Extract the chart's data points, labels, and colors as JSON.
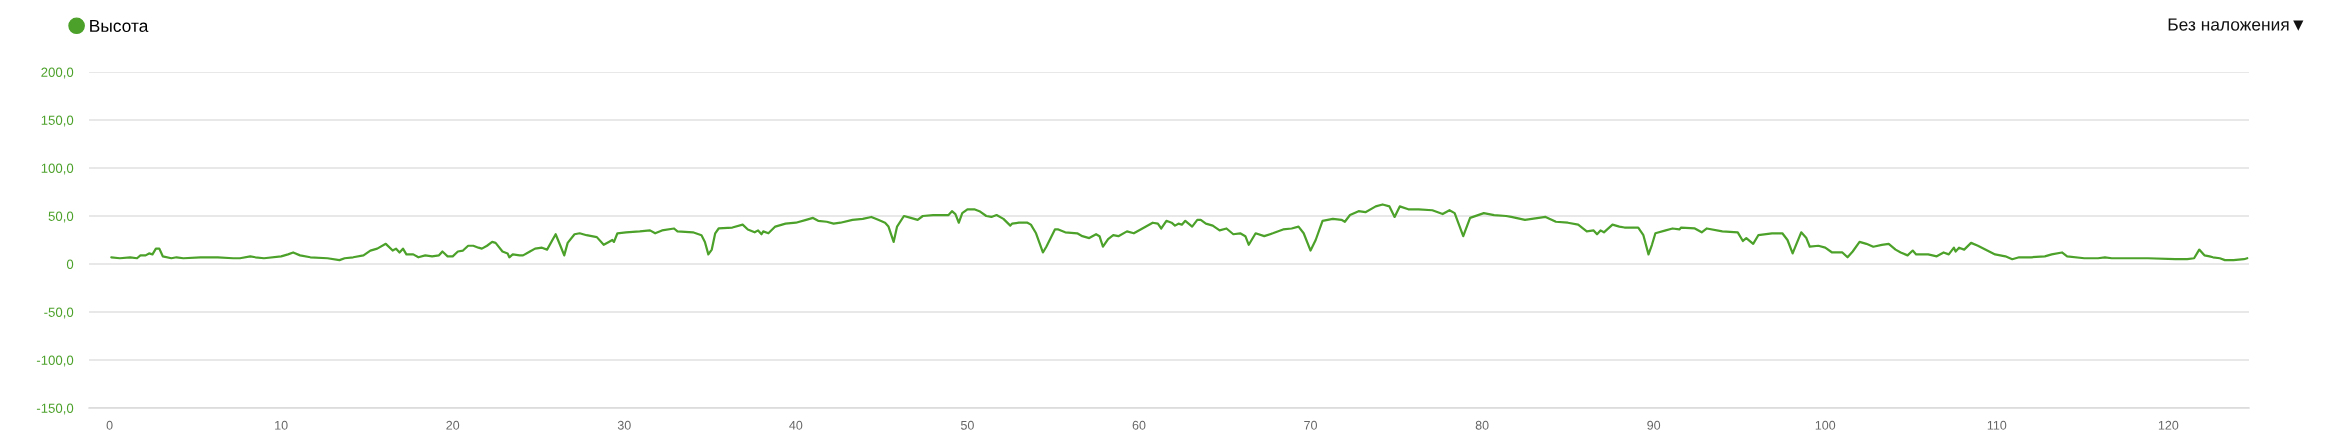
{
  "chart_data": {
    "type": "line",
    "x": [
      0.1,
      0.6,
      1.2,
      1.6,
      1.8,
      2.1,
      2.3,
      2.5,
      2.7,
      2.9,
      3.1,
      3.6,
      3.9,
      4.3,
      5.3,
      6.3,
      7.2,
      7.6,
      8.2,
      8.5,
      9.0,
      10.0,
      10.4,
      10.7,
      11.1,
      11.7,
      12.7,
      13.4,
      13.7,
      14.2,
      14.8,
      15.2,
      15.6,
      16.1,
      16.5,
      16.7,
      16.9,
      17.1,
      17.3,
      17.7,
      18.0,
      18.4,
      18.8,
      19.2,
      19.4,
      19.7,
      20.0,
      20.3,
      20.6,
      20.9,
      21.2,
      21.5,
      21.7,
      22.0,
      22.3,
      22.5,
      22.9,
      23.2,
      23.3,
      23.5,
      23.9,
      24.1,
      24.5,
      24.8,
      25.2,
      25.5,
      26.0,
      26.3,
      26.5,
      26.7,
      27.1,
      27.4,
      27.8,
      28.4,
      28.8,
      29.1,
      29.3,
      29.4,
      29.6,
      30.1,
      30.9,
      31.5,
      31.8,
      32.2,
      32.9,
      33.1,
      34.0,
      34.5,
      34.7,
      34.9,
      35.1,
      35.3,
      35.5,
      36.3,
      36.9,
      37.2,
      37.6,
      37.8,
      38.0,
      38.1,
      38.4,
      38.8,
      39.4,
      40.0,
      40.6,
      41.0,
      41.3,
      41.8,
      42.2,
      42.6,
      43.3,
      43.9,
      44.4,
      44.8,
      45.2,
      45.4,
      45.7,
      45.9,
      46.3,
      46.7,
      47.1,
      47.4,
      48.0,
      48.6,
      48.9,
      49.1,
      49.3,
      49.5,
      49.7,
      50.0,
      50.4,
      50.7,
      51.1,
      51.4,
      51.7,
      52.1,
      52.5,
      52.6,
      53.0,
      53.5,
      53.7,
      54.0,
      54.4,
      54.6,
      55.1,
      55.3,
      55.7,
      56.4,
      56.7,
      57.1,
      57.5,
      57.7,
      57.9,
      58.2,
      58.5,
      58.8,
      59.3,
      59.7,
      60.2,
      60.8,
      61.1,
      61.3,
      61.6,
      61.9,
      62.1,
      62.3,
      62.5,
      62.7,
      63.1,
      63.4,
      63.6,
      63.9,
      64.3,
      64.7,
      65.1,
      65.5,
      65.9,
      66.2,
      66.4,
      66.8,
      67.3,
      67.8,
      68.4,
      68.9,
      69.3,
      69.6,
      70.0,
      70.3,
      70.7,
      71.3,
      71.8,
      72.0,
      72.3,
      72.8,
      73.2,
      73.8,
      74.2,
      74.6,
      74.9,
      75.2,
      75.7,
      76.3,
      77.1,
      77.7,
      78.1,
      78.4,
      78.9,
      79.3,
      80.1,
      80.7,
      81.4,
      81.7,
      82.5,
      82.9,
      83.7,
      84.3,
      85.0,
      85.6,
      86.1,
      86.5,
      86.7,
      86.9,
      87.1,
      87.6,
      88.0,
      88.3,
      89.1,
      89.4,
      89.7,
      89.9,
      90.1,
      90.7,
      91.1,
      91.5,
      91.6,
      92.4,
      92.8,
      93.1,
      94.0,
      94.9,
      95.2,
      95.4,
      95.8,
      96.1,
      96.9,
      97.5,
      97.8,
      98.1,
      98.3,
      98.6,
      98.9,
      99.1,
      99.6,
      100.0,
      100.4,
      101.0,
      101.3,
      101.6,
      102.0,
      102.4,
      102.8,
      103.3,
      103.7,
      104.1,
      104.4,
      104.8,
      105.1,
      105.3,
      106.0,
      106.5,
      106.9,
      107.2,
      107.5,
      107.6,
      107.8,
      108.1,
      108.5,
      108.9,
      109.9,
      110.5,
      110.9,
      111.3,
      112.0,
      112.8,
      113.2,
      113.8,
      114.1,
      115.1,
      115.9,
      116.3,
      116.7,
      117.8,
      118.8,
      120.4,
      121.1,
      121.5,
      121.8,
      122.1,
      122.4,
      122.6,
      123.0,
      123.3,
      123.8,
      124.4,
      124.6
    ],
    "series": [
      {
        "name": "Высота",
        "color": "#4ca12a",
        "values": [
          7,
          6,
          7,
          6,
          9,
          9,
          11,
          10,
          16,
          16,
          8,
          6,
          7,
          6,
          7,
          7,
          6,
          6,
          8,
          7,
          6,
          8,
          10,
          12,
          9,
          7,
          6,
          4,
          6,
          7,
          9,
          14,
          16,
          21,
          14,
          16,
          12,
          16,
          10,
          10,
          7,
          9,
          8,
          9,
          13,
          8,
          8,
          13,
          14,
          19,
          19,
          17,
          16,
          19,
          23,
          22,
          13,
          11,
          7,
          10,
          9,
          9,
          13,
          16,
          17,
          15,
          31,
          18,
          9,
          22,
          31,
          32,
          30,
          28,
          20,
          23,
          25,
          23,
          32,
          33,
          34,
          35,
          32,
          35,
          37,
          34,
          33,
          30,
          23,
          10,
          15,
          32,
          37,
          38,
          41,
          36,
          33,
          35,
          31,
          34,
          32,
          39,
          42,
          43,
          46,
          48,
          45,
          44,
          42,
          43,
          46,
          47,
          49,
          46,
          43,
          39,
          23,
          39,
          50,
          48,
          46,
          50,
          51,
          51,
          51,
          55,
          52,
          43,
          53,
          57,
          57,
          55,
          50,
          49,
          51,
          47,
          40,
          42,
          43,
          43,
          41,
          32,
          12,
          18,
          36,
          36,
          33,
          32,
          29,
          27,
          31,
          29,
          18,
          26,
          30,
          29,
          34,
          32,
          37,
          43,
          42,
          37,
          45,
          43,
          40,
          42,
          41,
          45,
          39,
          46,
          46,
          42,
          40,
          35,
          37,
          31,
          32,
          29,
          20,
          32,
          29,
          32,
          36,
          37,
          39,
          32,
          14,
          25,
          45,
          47,
          46,
          44,
          51,
          55,
          54,
          60,
          62,
          60,
          49,
          60,
          57,
          57,
          56,
          52,
          56,
          53,
          29,
          48,
          53,
          51,
          50,
          49,
          46,
          47,
          49,
          44,
          43,
          41,
          34,
          35,
          31,
          35,
          33,
          41,
          39,
          38,
          38,
          30,
          10,
          20,
          32,
          35,
          37,
          36,
          38,
          37,
          33,
          37,
          34,
          33,
          24,
          27,
          21,
          30,
          32,
          32,
          25,
          11,
          20,
          33,
          27,
          18,
          19,
          17,
          12,
          12,
          7,
          13,
          23,
          21,
          18,
          20,
          21,
          15,
          12,
          9,
          14,
          10,
          10,
          8,
          12,
          10,
          17,
          13,
          17,
          15,
          22,
          19,
          10,
          8,
          5,
          7,
          7,
          8,
          10,
          12,
          8,
          6,
          6,
          7,
          6,
          6,
          6,
          5,
          5,
          6,
          15,
          9,
          8,
          7,
          6,
          4,
          4,
          5,
          6
        ]
      }
    ],
    "xlim": [
      -1.2,
      124.7
    ],
    "ylim": [
      -150,
      200
    ],
    "xticks": [
      0,
      10,
      20,
      30,
      40,
      50,
      60,
      70,
      80,
      90,
      100,
      110,
      120
    ],
    "yticks": [
      {
        "value": -150,
        "label": "-150,0"
      },
      {
        "value": -100,
        "label": "-100,0"
      },
      {
        "value": -50,
        "label": "-50,0"
      },
      0,
      {
        "value": 50,
        "label": "50,0"
      },
      {
        "value": 100,
        "label": "100,0"
      },
      {
        "value": 150,
        "label": "150,0"
      },
      {
        "value": 200,
        "label": "200,0"
      }
    ],
    "grid": "y",
    "legend": "top left",
    "line_style": "solid",
    "annotations": [
      "Без наложения▼"
    ]
  }
}
